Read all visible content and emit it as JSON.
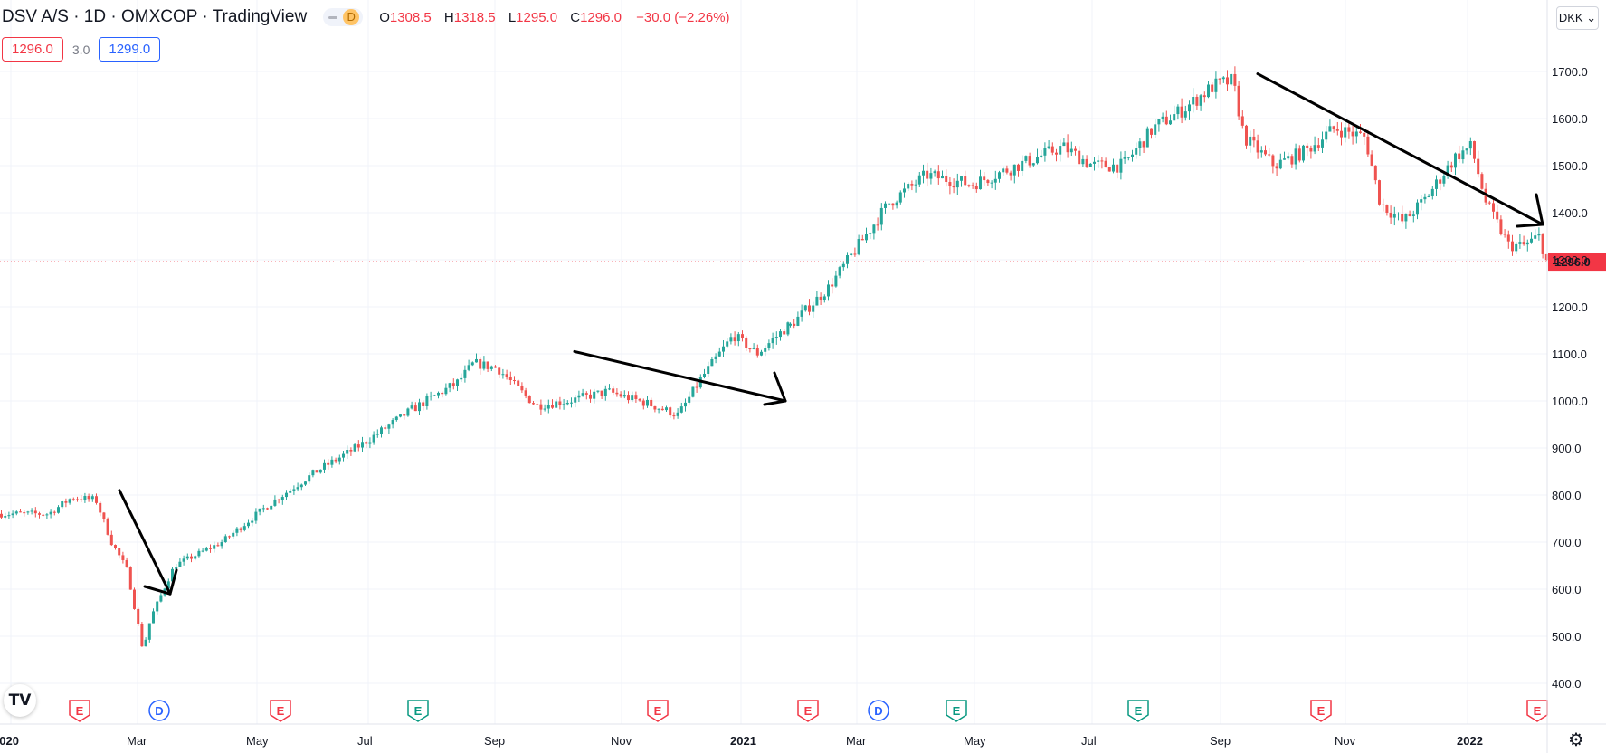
{
  "header": {
    "title": "DSV A/S · 1D · OMXCOP · TradingView",
    "pill_letter": "D",
    "ohlc": {
      "o_label": "O",
      "o": "1308.5",
      "h_label": "H",
      "h": "1318.5",
      "l_label": "L",
      "l": "1295.0",
      "c_label": "C",
      "c": "1296.0",
      "change": "−30.0 (−2.26%)"
    },
    "bid": "1296.0",
    "spread": "3.0",
    "ask": "1299.0"
  },
  "currency_label": "DKK",
  "logo_text": "TV",
  "settings_icon": "gear-icon",
  "colors": {
    "up": "#26a69a",
    "down": "#ef5350",
    "price_line": "#f23645",
    "grid": "#f0f3fa",
    "earnings": "#f23645",
    "earnings_alt": "#089981",
    "dividend": "#2962ff"
  },
  "chart_data": {
    "type": "candlestick",
    "title": "DSV A/S · 1D · OMXCOP",
    "ylabel": "DKK",
    "ylim": [
      375,
      1735
    ],
    "y_ticks": [
      "1700.0",
      "1600.0",
      "1500.0",
      "1400.0",
      "1300.0",
      "1200.0",
      "1100.0",
      "1000.0",
      "900.0",
      "800.0",
      "700.0",
      "600.0",
      "500.0",
      "400.0"
    ],
    "x_labels": [
      "2020",
      "Mar",
      "May",
      "Jul",
      "Sep",
      "Nov",
      "2021",
      "Mar",
      "May",
      "Jul",
      "Sep",
      "Nov",
      "2022"
    ],
    "x_label_bold": [
      "2020",
      "2021",
      "2022"
    ],
    "last_price": 1296.0,
    "last_price_label": "1296.0",
    "price_path": [
      {
        "x": 0,
        "y": 760
      },
      {
        "x": 0.06,
        "y": 760
      },
      {
        "x": 0.09,
        "y": 795
      },
      {
        "x": 0.12,
        "y": 790
      },
      {
        "x": 0.14,
        "y": 700
      },
      {
        "x": 0.16,
        "y": 640
      },
      {
        "x": 0.18,
        "y": 470
      },
      {
        "x": 0.19,
        "y": 540
      },
      {
        "x": 0.22,
        "y": 650
      },
      {
        "x": 0.28,
        "y": 700
      },
      {
        "x": 0.34,
        "y": 780
      },
      {
        "x": 0.4,
        "y": 850
      },
      {
        "x": 0.46,
        "y": 910
      },
      {
        "x": 0.52,
        "y": 980
      },
      {
        "x": 0.58,
        "y": 1040
      },
      {
        "x": 0.6,
        "y": 1080
      },
      {
        "x": 0.63,
        "y": 1070
      },
      {
        "x": 0.66,
        "y": 1020
      },
      {
        "x": 0.68,
        "y": 990
      },
      {
        "x": 0.72,
        "y": 1000
      },
      {
        "x": 0.77,
        "y": 1020
      },
      {
        "x": 0.82,
        "y": 995
      },
      {
        "x": 0.86,
        "y": 970
      },
      {
        "x": 0.89,
        "y": 1050
      },
      {
        "x": 0.93,
        "y": 1140
      },
      {
        "x": 0.96,
        "y": 1100
      },
      {
        "x": 1.0,
        "y": 1160
      }
    ],
    "candles_segment_2": [
      {
        "x": 0,
        "y": 1160
      },
      {
        "x": 0.05,
        "y": 1240
      },
      {
        "x": 0.09,
        "y": 1330
      },
      {
        "x": 0.13,
        "y": 1420
      },
      {
        "x": 0.18,
        "y": 1480
      },
      {
        "x": 0.24,
        "y": 1460
      },
      {
        "x": 0.3,
        "y": 1500
      },
      {
        "x": 0.36,
        "y": 1540
      },
      {
        "x": 0.4,
        "y": 1500
      },
      {
        "x": 0.44,
        "y": 1500
      },
      {
        "x": 0.48,
        "y": 1580
      },
      {
        "x": 0.52,
        "y": 1620
      },
      {
        "x": 0.56,
        "y": 1670
      },
      {
        "x": 0.585,
        "y": 1680
      },
      {
        "x": 0.6,
        "y": 1560
      },
      {
        "x": 0.64,
        "y": 1500
      },
      {
        "x": 0.68,
        "y": 1530
      },
      {
        "x": 0.72,
        "y": 1580
      },
      {
        "x": 0.76,
        "y": 1560
      },
      {
        "x": 0.78,
        "y": 1420
      },
      {
        "x": 0.81,
        "y": 1380
      },
      {
        "x": 0.84,
        "y": 1430
      },
      {
        "x": 0.88,
        "y": 1520
      },
      {
        "x": 0.9,
        "y": 1540
      },
      {
        "x": 0.92,
        "y": 1420
      },
      {
        "x": 0.95,
        "y": 1330
      },
      {
        "x": 0.97,
        "y": 1330
      },
      {
        "x": 0.99,
        "y": 1350
      },
      {
        "x": 1.0,
        "y": 1296
      }
    ],
    "trend_arrows": [
      {
        "x1": "Feb 2020",
        "y1": 810,
        "x2": "Mar 2020",
        "y2": 590
      },
      {
        "x1": "Sep 2020",
        "y1": 1105,
        "x2": "Jan 2021",
        "y2": 1000
      },
      {
        "x1": "Sep 2021",
        "y1": 1695,
        "x2": "Jan 2022",
        "y2": 1375
      }
    ],
    "events": [
      {
        "type": "earnings",
        "letter": "E",
        "color": "red"
      },
      {
        "type": "dividend",
        "letter": "D",
        "color": "blue"
      },
      {
        "type": "earnings",
        "letter": "E",
        "color": "red"
      },
      {
        "type": "earnings",
        "letter": "E",
        "color": "green"
      },
      {
        "type": "earnings",
        "letter": "E",
        "color": "red"
      },
      {
        "type": "earnings",
        "letter": "E",
        "color": "red"
      },
      {
        "type": "dividend",
        "letter": "D",
        "color": "blue"
      },
      {
        "type": "earnings",
        "letter": "E",
        "color": "green"
      },
      {
        "type": "earnings",
        "letter": "E",
        "color": "green"
      },
      {
        "type": "earnings",
        "letter": "E",
        "color": "red"
      },
      {
        "type": "earnings",
        "letter": "E",
        "color": "red"
      }
    ]
  }
}
